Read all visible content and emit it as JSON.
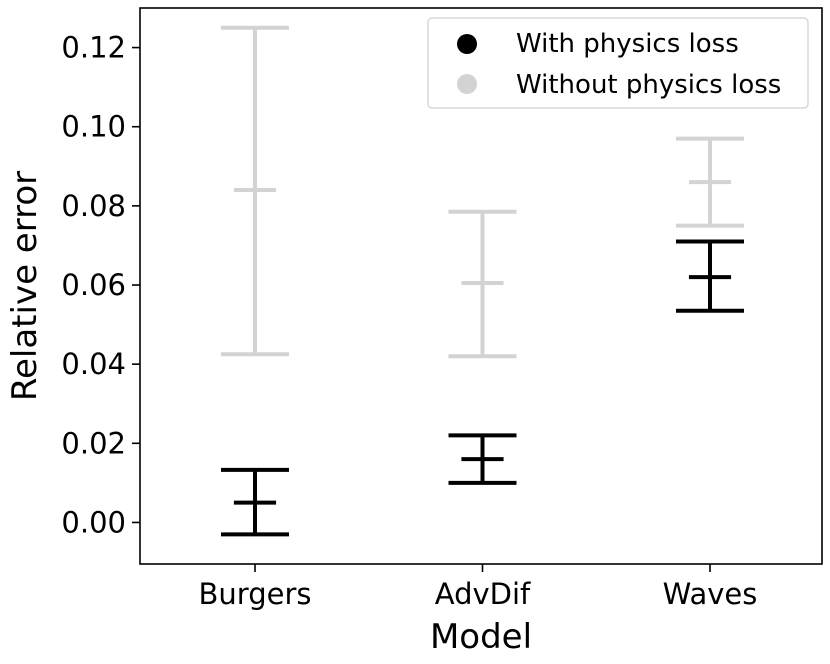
{
  "chart_data": {
    "type": "errorbar",
    "title": "",
    "xlabel": "Model",
    "ylabel": "Relative error",
    "categories": [
      "Burgers",
      "AdvDif",
      "Waves"
    ],
    "ylim": [
      -0.0105,
      0.13
    ],
    "yticks": [
      "0.00",
      "0.02",
      "0.04",
      "0.06",
      "0.08",
      "0.10",
      "0.12"
    ],
    "ytick_values": [
      0.0,
      0.02,
      0.04,
      0.06,
      0.08,
      0.1,
      0.12
    ],
    "grid": false,
    "legend_position": "top-right",
    "series": [
      {
        "name": "With physics loss",
        "color": "#000000",
        "mean": [
          0.005,
          0.016,
          0.062
        ],
        "lower": [
          -0.003,
          0.01,
          0.0535
        ],
        "upper": [
          0.0133,
          0.022,
          0.071
        ]
      },
      {
        "name": "Without physics loss",
        "color": "#d3d3d3",
        "mean": [
          0.084,
          0.0605,
          0.086
        ],
        "lower": [
          0.0425,
          0.042,
          0.075
        ],
        "upper": [
          0.125,
          0.0785,
          0.097
        ]
      }
    ]
  }
}
